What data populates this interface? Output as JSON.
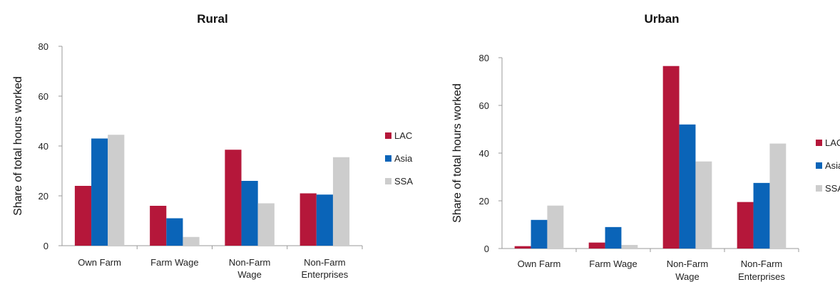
{
  "colors": {
    "LAC": "#B5173A",
    "Asia": "#0A64B8",
    "SSA": "#CDCDCD"
  },
  "chart_data": [
    {
      "type": "bar",
      "title": "Rural",
      "ylabel": "Share of total hours worked",
      "xlabel": "",
      "ylim": [
        0,
        80
      ],
      "yticks": [
        "0",
        "20",
        "40",
        "60",
        "80"
      ],
      "categories": [
        [
          "Own Farm"
        ],
        [
          "Farm Wage"
        ],
        [
          "Non-Farm",
          "Wage"
        ],
        [
          "Non-Farm",
          "Enterprises"
        ]
      ],
      "series": [
        {
          "name": "LAC",
          "values": [
            24,
            16,
            38.5,
            21
          ]
        },
        {
          "name": "Asia",
          "values": [
            43,
            11,
            26,
            20.5
          ]
        },
        {
          "name": "SSA",
          "values": [
            44.5,
            3.5,
            17,
            35.5
          ]
        }
      ],
      "legend": "right"
    },
    {
      "type": "bar",
      "title": "Urban",
      "ylabel": "Share of total hours worked",
      "xlabel": "",
      "ylim": [
        0,
        80
      ],
      "yticks": [
        "0",
        "20",
        "40",
        "60",
        "80"
      ],
      "categories": [
        [
          "Own Farm"
        ],
        [
          "Farm Wage"
        ],
        [
          "Non-Farm",
          "Wage"
        ],
        [
          "Non-Farm",
          "Enterprises"
        ]
      ],
      "series": [
        {
          "name": "LAC",
          "values": [
            1,
            2.5,
            76.5,
            19.5
          ]
        },
        {
          "name": "Asia",
          "values": [
            12,
            9,
            52,
            27.5
          ]
        },
        {
          "name": "SSA",
          "values": [
            18,
            1.5,
            36.5,
            44
          ]
        }
      ],
      "legend": "right"
    }
  ]
}
